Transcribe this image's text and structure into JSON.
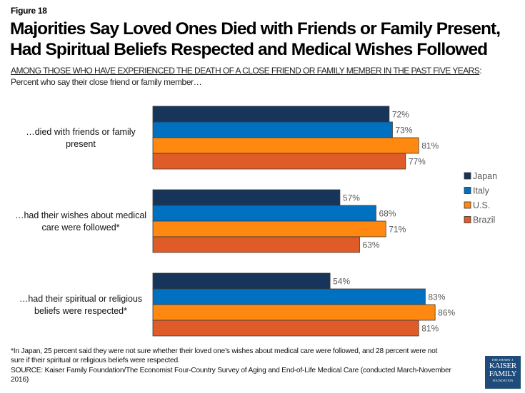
{
  "figure_label": "Figure 18",
  "title_line1": "Majorities Say Loved Ones Died with Friends or Family Present,",
  "title_line2": "Had Spiritual Beliefs Respected and Medical Wishes Followed",
  "subtitle_underlined": "AMONG THOSE WHO HAVE EXPERIENCED THE DEATH OF A CLOSE FRIEND OR FAMILY MEMBER IN THE PAST FIVE YEARS",
  "subtitle_suffix": ":",
  "subtitle2": "Percent who say their close friend or family member…",
  "chart_data": {
    "type": "bar",
    "orientation": "horizontal",
    "title": "Majorities Say Loved Ones Died with Friends or Family Present, Had Spiritual Beliefs Respected and Medical Wishes Followed",
    "xlabel": "",
    "ylabel": "",
    "xlim": [
      0,
      100
    ],
    "grid": false,
    "legend_position": "right",
    "value_suffix": "%",
    "categories": [
      {
        "line1": "…died with friends or family",
        "line2": "present"
      },
      {
        "line1": "…had their wishes about medical",
        "line2": "care were followed*"
      },
      {
        "line1": "…had their spiritual or religious",
        "line2": "beliefs were respected*"
      }
    ],
    "series": [
      {
        "name": "Japan",
        "color": "#17355a",
        "values": [
          72,
          57,
          54
        ]
      },
      {
        "name": "Italy",
        "color": "#0070c0",
        "values": [
          73,
          68,
          83
        ]
      },
      {
        "name": "U.S.",
        "color": "#ff8811",
        "values": [
          81,
          71,
          86
        ]
      },
      {
        "name": "Brazil",
        "color": "#df5b27",
        "values": [
          77,
          63,
          81
        ]
      }
    ]
  },
  "footnote": {
    "note_line1": "*In Japan, 25 percent said they were not sure whether their loved one’s wishes about medical care were followed, and 28 percent were not",
    "note_line2": "sure if their spiritual or religious beliefs were respected.",
    "source_line1": "SOURCE: Kaiser Family Foundation/The Economist Four-Country Survey of Aging and End-of-Life Medical Care (conducted March-November",
    "source_line2": "2016)"
  },
  "logo": {
    "line1": "THE HENRY J.",
    "line2": "KAISER",
    "line3": "FAMILY",
    "line4": "FOUNDATION"
  }
}
